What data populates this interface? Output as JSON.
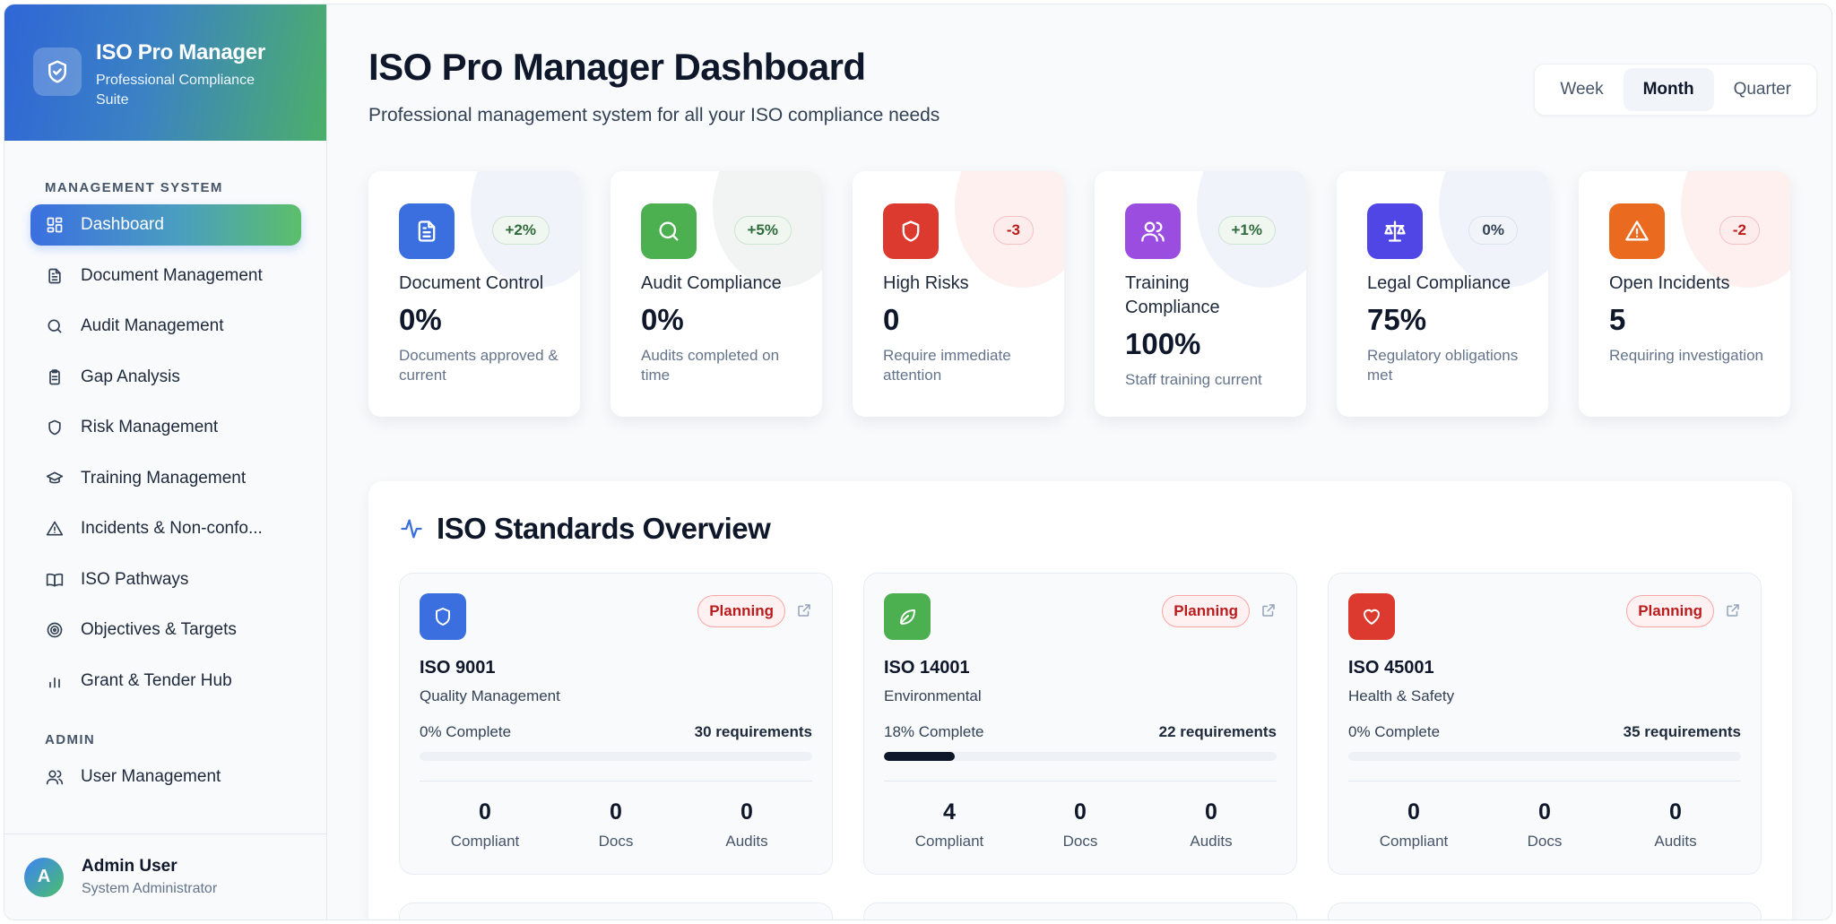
{
  "brand": {
    "title": "ISO Pro Manager",
    "subtitle": "Professional Compliance Suite"
  },
  "sidebar": {
    "section_management": "MANAGEMENT SYSTEM",
    "items": [
      {
        "label": "Dashboard",
        "icon": "dashboard-icon"
      },
      {
        "label": "Document Management",
        "icon": "document-icon"
      },
      {
        "label": "Audit Management",
        "icon": "search-icon"
      },
      {
        "label": "Gap Analysis",
        "icon": "clipboard-icon"
      },
      {
        "label": "Risk Management",
        "icon": "shield-icon"
      },
      {
        "label": "Training Management",
        "icon": "graduation-cap-icon"
      },
      {
        "label": "Incidents & Non-confo...",
        "icon": "warning-icon"
      },
      {
        "label": "ISO Pathways",
        "icon": "book-icon"
      },
      {
        "label": "Objectives & Targets",
        "icon": "target-icon"
      },
      {
        "label": "Grant & Tender Hub",
        "icon": "bar-chart-icon"
      }
    ],
    "section_admin": "ADMIN",
    "admin_items": [
      {
        "label": "User Management",
        "icon": "users-icon"
      }
    ]
  },
  "user": {
    "initial": "A",
    "name": "Admin User",
    "role": "System Administrator"
  },
  "header": {
    "title": "ISO Pro Manager Dashboard",
    "subtitle": "Professional management system for all your ISO compliance needs",
    "periods": [
      "Week",
      "Month",
      "Quarter"
    ],
    "active_period": "Month"
  },
  "metrics": [
    {
      "label": "Document Control",
      "value": "0%",
      "desc": "Documents approved & current",
      "badge": "+2%",
      "trend": "up",
      "color": "#3b6fe0",
      "icon": "document-icon"
    },
    {
      "label": "Audit Compliance",
      "value": "0%",
      "desc": "Audits completed on time",
      "badge": "+5%",
      "trend": "up",
      "color": "#4caf50",
      "icon": "search-icon"
    },
    {
      "label": "High Risks",
      "value": "0",
      "desc": "Require immediate attention",
      "badge": "-3",
      "trend": "down",
      "color": "#dc3a2e",
      "icon": "shield-icon"
    },
    {
      "label": "Training Compliance",
      "value": "100%",
      "desc": "Staff training current",
      "badge": "+1%",
      "trend": "up",
      "color": "#9b4de0",
      "icon": "users-icon"
    },
    {
      "label": "Legal Compliance",
      "value": "75%",
      "desc": "Regulatory obligations met",
      "badge": "0%",
      "trend": "neutral",
      "color": "#4f46e5",
      "icon": "scale-icon"
    },
    {
      "label": "Open Incidents",
      "value": "5",
      "desc": "Requiring investigation",
      "badge": "-2",
      "trend": "down",
      "color": "#ea6a1f",
      "icon": "warning-icon"
    }
  ],
  "overview": {
    "title": "ISO Standards Overview",
    "standards": [
      {
        "code": "ISO 9001",
        "name": "Quality Management",
        "status": "Planning",
        "complete_label": "0% Complete",
        "complete": 0,
        "requirements": "30 requirements",
        "color": "#3b6fe0",
        "icon": "shield-icon",
        "stats": [
          {
            "num": "0",
            "label": "Compliant"
          },
          {
            "num": "0",
            "label": "Docs"
          },
          {
            "num": "0",
            "label": "Audits"
          }
        ]
      },
      {
        "code": "ISO 14001",
        "name": "Environmental",
        "status": "Planning",
        "complete_label": "18% Complete",
        "complete": 18,
        "requirements": "22 requirements",
        "color": "#4caf50",
        "icon": "leaf-icon",
        "stats": [
          {
            "num": "4",
            "label": "Compliant"
          },
          {
            "num": "0",
            "label": "Docs"
          },
          {
            "num": "0",
            "label": "Audits"
          }
        ]
      },
      {
        "code": "ISO 45001",
        "name": "Health & Safety",
        "status": "Planning",
        "complete_label": "0% Complete",
        "complete": 0,
        "requirements": "35 requirements",
        "color": "#dc3a2e",
        "icon": "heart-icon",
        "stats": [
          {
            "num": "0",
            "label": "Compliant"
          },
          {
            "num": "0",
            "label": "Docs"
          },
          {
            "num": "0",
            "label": "Audits"
          }
        ]
      }
    ]
  }
}
